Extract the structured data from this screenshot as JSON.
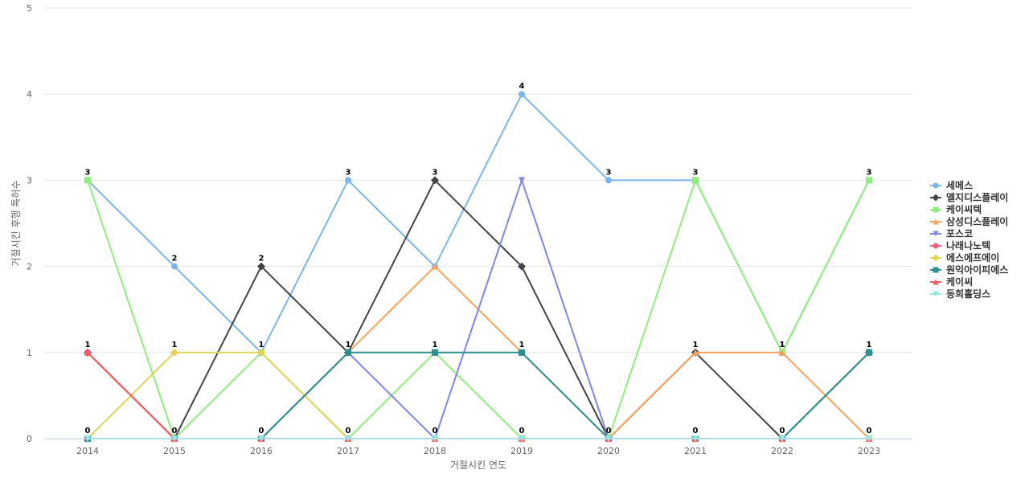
{
  "chart_data": {
    "type": "line",
    "title": "",
    "xlabel": "거절시킨 연도",
    "ylabel": "거절시킨 후행 특허수",
    "x": [
      "2014",
      "2015",
      "2016",
      "2017",
      "2018",
      "2019",
      "2020",
      "2021",
      "2022",
      "2023"
    ],
    "ylim": [
      0,
      5
    ],
    "yticks": [
      "0",
      "1",
      "2",
      "3",
      "4",
      "5"
    ],
    "grid": true,
    "legend_position": "right",
    "series": [
      {
        "name": "세메스",
        "color": "#7cb5ec",
        "marker": "circle",
        "values": [
          3,
          2,
          1,
          3,
          2,
          4,
          3,
          3,
          1,
          3
        ]
      },
      {
        "name": "엘지디스플레이",
        "color": "#434348",
        "marker": "diamond",
        "values": [
          1,
          0,
          2,
          1,
          3,
          2,
          0,
          1,
          0,
          1
        ]
      },
      {
        "name": "케이씨텍",
        "color": "#90ed7d",
        "marker": "square",
        "values": [
          3,
          0,
          1,
          0,
          1,
          0,
          0,
          3,
          1,
          3
        ]
      },
      {
        "name": "삼성디스플레이",
        "color": "#f7a35c",
        "marker": "triangle",
        "values": [
          0,
          0,
          0,
          1,
          2,
          1,
          0,
          1,
          1,
          0
        ]
      },
      {
        "name": "포스코",
        "color": "#8085e9",
        "marker": "triangle-down",
        "values": [
          0,
          0,
          0,
          1,
          0,
          3,
          0,
          0,
          0,
          0
        ]
      },
      {
        "name": "나래나노텍",
        "color": "#f15c80",
        "marker": "circle",
        "values": [
          1,
          0,
          0,
          0,
          0,
          0,
          0,
          0,
          0,
          0
        ]
      },
      {
        "name": "에스에프에이",
        "color": "#e4d354",
        "marker": "diamond",
        "values": [
          0,
          1,
          1,
          0,
          0,
          0,
          0,
          0,
          0,
          0
        ]
      },
      {
        "name": "원익아이피에스",
        "color": "#2b908f",
        "marker": "square",
        "values": [
          0,
          0,
          0,
          1,
          1,
          1,
          0,
          0,
          0,
          1
        ]
      },
      {
        "name": "케이씨",
        "color": "#f45b5b",
        "marker": "triangle",
        "values": [
          1,
          0,
          0,
          0,
          0,
          0,
          0,
          0,
          0,
          0
        ]
      },
      {
        "name": "동희홀딩스",
        "color": "#91e8e1",
        "marker": "triangle-down",
        "values": [
          0,
          0,
          0,
          0,
          0,
          0,
          0,
          0,
          0,
          0
        ]
      }
    ],
    "data_labels": [
      "3",
      "2",
      "2",
      "3",
      "3",
      "4",
      "3",
      "3",
      "1",
      "3",
      "1",
      "1",
      "1",
      "1",
      "1",
      "1",
      "1",
      "1",
      "1",
      "1",
      "0",
      "0",
      "0",
      "0",
      "0",
      "0",
      "0",
      "0",
      "0",
      "0"
    ]
  }
}
